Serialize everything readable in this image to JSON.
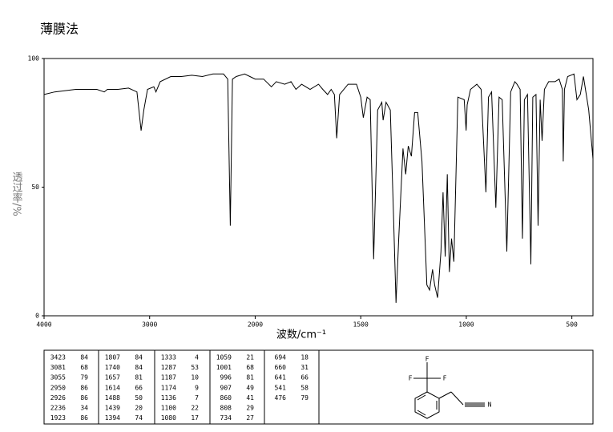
{
  "chart_data": {
    "type": "line",
    "title": "薄膜法",
    "x_label": "波数/cm⁻¹",
    "y_label": "透过率/%",
    "xlim": [
      4000,
      400
    ],
    "xticks": [
      4000,
      3000,
      2000,
      1500,
      1000,
      500
    ],
    "xscale": "tick-spaced",
    "ylim": [
      0,
      100
    ],
    "yticks": [
      0,
      50,
      100
    ],
    "grid": false,
    "series": [
      {
        "color": "#000000",
        "x": [
          4000,
          3900,
          3700,
          3500,
          3430,
          3400,
          3300,
          3200,
          3120,
          3081,
          3055,
          3020,
          2960,
          2940,
          2900,
          2800,
          2700,
          2600,
          2500,
          2400,
          2300,
          2260,
          2236,
          2215,
          2180,
          2100,
          2050,
          2000,
          1960,
          1923,
          1900,
          1860,
          1830,
          1807,
          1780,
          1740,
          1700,
          1680,
          1657,
          1640,
          1625,
          1614,
          1600,
          1560,
          1520,
          1500,
          1488,
          1470,
          1455,
          1439,
          1420,
          1400,
          1394,
          1380,
          1360,
          1345,
          1333,
          1320,
          1300,
          1287,
          1275,
          1260,
          1245,
          1230,
          1210,
          1187,
          1174,
          1160,
          1150,
          1136,
          1120,
          1110,
          1100,
          1090,
          1080,
          1070,
          1059,
          1040,
          1010,
          1001,
          996,
          980,
          950,
          930,
          907,
          895,
          880,
          860,
          845,
          830,
          808,
          790,
          770,
          760,
          745,
          734,
          725,
          710,
          694,
          685,
          670,
          660,
          650,
          641,
          630,
          610,
          580,
          560,
          545,
          541,
          535,
          520,
          490,
          476,
          460,
          445,
          420,
          400
        ],
        "values": [
          86,
          87,
          88,
          88,
          87,
          88,
          88,
          88.5,
          87,
          72,
          80,
          88,
          89,
          87,
          91,
          93,
          93,
          93.5,
          93,
          94,
          94,
          92,
          35,
          92,
          93,
          94,
          93,
          92,
          92,
          89,
          91,
          90,
          91,
          88,
          90,
          88,
          90,
          88,
          86,
          88,
          86,
          69,
          86,
          90,
          90,
          85,
          77,
          85,
          84,
          22,
          80,
          83,
          76,
          83,
          80,
          40,
          5,
          30,
          65,
          55,
          66,
          62,
          79,
          79,
          60,
          12,
          10,
          18,
          12,
          7,
          25,
          48,
          23,
          55,
          17,
          30,
          21,
          85,
          84,
          72,
          82,
          88,
          90,
          88,
          48,
          85,
          87,
          42,
          85,
          84,
          25,
          87,
          91,
          90,
          88,
          30,
          84,
          86,
          20,
          85,
          86,
          35,
          84,
          68,
          88,
          91,
          91,
          92,
          88,
          60,
          88,
          93,
          94,
          84,
          86,
          93,
          80,
          61
        ]
      }
    ]
  },
  "peak_table": {
    "columns": [
      [
        [
          3423,
          84
        ],
        [
          3081,
          68
        ],
        [
          3055,
          79
        ],
        [
          2950,
          86
        ],
        [
          2926,
          86
        ],
        [
          2236,
          34
        ],
        [
          1923,
          86
        ]
      ],
      [
        [
          1807,
          84
        ],
        [
          1740,
          84
        ],
        [
          1657,
          81
        ],
        [
          1614,
          66
        ],
        [
          1488,
          50
        ],
        [
          1439,
          20
        ],
        [
          1394,
          74
        ]
      ],
      [
        [
          1333,
          4
        ],
        [
          1287,
          53
        ],
        [
          1187,
          10
        ],
        [
          1174,
          9
        ],
        [
          1136,
          7
        ],
        [
          1100,
          22
        ],
        [
          1080,
          17
        ]
      ],
      [
        [
          1059,
          21
        ],
        [
          1001,
          68
        ],
        [
          996,
          81
        ],
        [
          907,
          49
        ],
        [
          860,
          41
        ],
        [
          808,
          29
        ],
        [
          734,
          27
        ]
      ],
      [
        [
          694,
          18
        ],
        [
          660,
          31
        ],
        [
          641,
          66
        ],
        [
          541,
          58
        ],
        [
          476,
          79
        ]
      ]
    ]
  },
  "structure": {
    "labels": [
      "F",
      "F",
      "F",
      "N"
    ]
  }
}
